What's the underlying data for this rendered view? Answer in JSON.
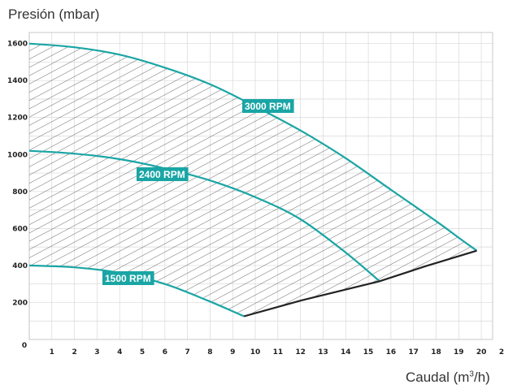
{
  "chart_data": {
    "type": "line",
    "title": "",
    "ylabel": "Presión (mbar)",
    "xlabel_text": "Caudal (m",
    "xlabel_sup": "3",
    "xlabel_end": "/h)",
    "x_ticks": [
      "0",
      "1",
      "2",
      "3",
      "4",
      "5",
      "6",
      "7",
      "8",
      "9",
      "10",
      "11",
      "12",
      "13",
      "14",
      "15",
      "16",
      "17",
      "18",
      "19",
      "20",
      "2"
    ],
    "y_ticks": [
      "200",
      "400",
      "600",
      "800",
      "1000",
      "1200",
      "1400",
      "1600"
    ],
    "xlim": [
      0,
      20.5
    ],
    "ylim": [
      0,
      1660
    ],
    "grid": true,
    "series": [
      {
        "name": "3000 RPM",
        "color": "#1aa5a5",
        "x": [
          0,
          2,
          4,
          6,
          8,
          10,
          12,
          14,
          16,
          18,
          19,
          19.8
        ],
        "y": [
          1600,
          1580,
          1540,
          1470,
          1380,
          1260,
          1130,
          980,
          810,
          640,
          550,
          480
        ]
      },
      {
        "name": "2400 RPM",
        "color": "#1aa5a5",
        "x": [
          0,
          2,
          4,
          6,
          8,
          10,
          12,
          14,
          15.5
        ],
        "y": [
          1020,
          1005,
          975,
          925,
          860,
          770,
          650,
          470,
          315
        ]
      },
      {
        "name": "1500 RPM",
        "color": "#1aa5a5",
        "x": [
          0,
          2,
          4,
          6,
          8,
          9.5
        ],
        "y": [
          400,
          390,
          360,
          300,
          205,
          125
        ]
      },
      {
        "name": "",
        "color": "#222222",
        "x": [
          9.5,
          12,
          15.5,
          17.5,
          19.8
        ],
        "y": [
          125,
          210,
          315,
          395,
          480
        ]
      }
    ],
    "hatched_region": true,
    "label_color": "#1aa5a5"
  }
}
